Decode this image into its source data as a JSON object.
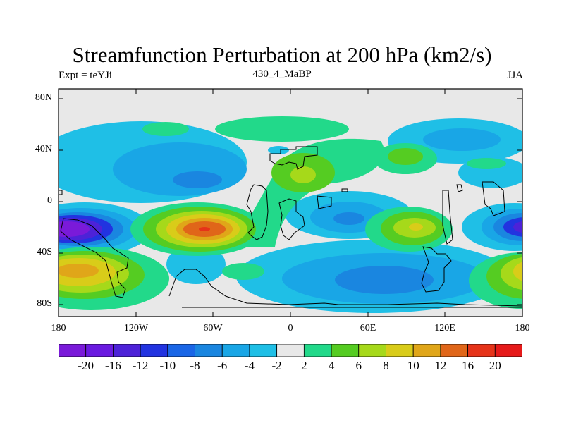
{
  "plot": {
    "title": "Streamfunction Perturbation at 200 hPa (km2/s)",
    "left_label": "Expt = teYJi",
    "center_label": "430_4_MaBP",
    "right_label": "JJA"
  },
  "axes": {
    "x_ticks": [
      "180",
      "120W",
      "60W",
      "0",
      "60E",
      "120E",
      "180"
    ],
    "y_ticks": [
      "80N",
      "40N",
      "0",
      "40S",
      "80S"
    ]
  },
  "colorbar": {
    "labels": [
      "-20",
      "-16",
      "-12",
      "-10",
      "-8",
      "-6",
      "-4",
      "-2",
      "2",
      "4",
      "6",
      "8",
      "10",
      "12",
      "16",
      "20"
    ],
    "colors": [
      "#7a1ad9",
      "#6a1ae0",
      "#4d22d8",
      "#2233e0",
      "#1a66e6",
      "#1a86e0",
      "#19a6e6",
      "#1fbfe6",
      "#e8e8e8",
      "#22d98a",
      "#55cc22",
      "#a6d91a",
      "#d9cc19",
      "#e0a619",
      "#e06619",
      "#e63319",
      "#e61a1a"
    ]
  }
}
